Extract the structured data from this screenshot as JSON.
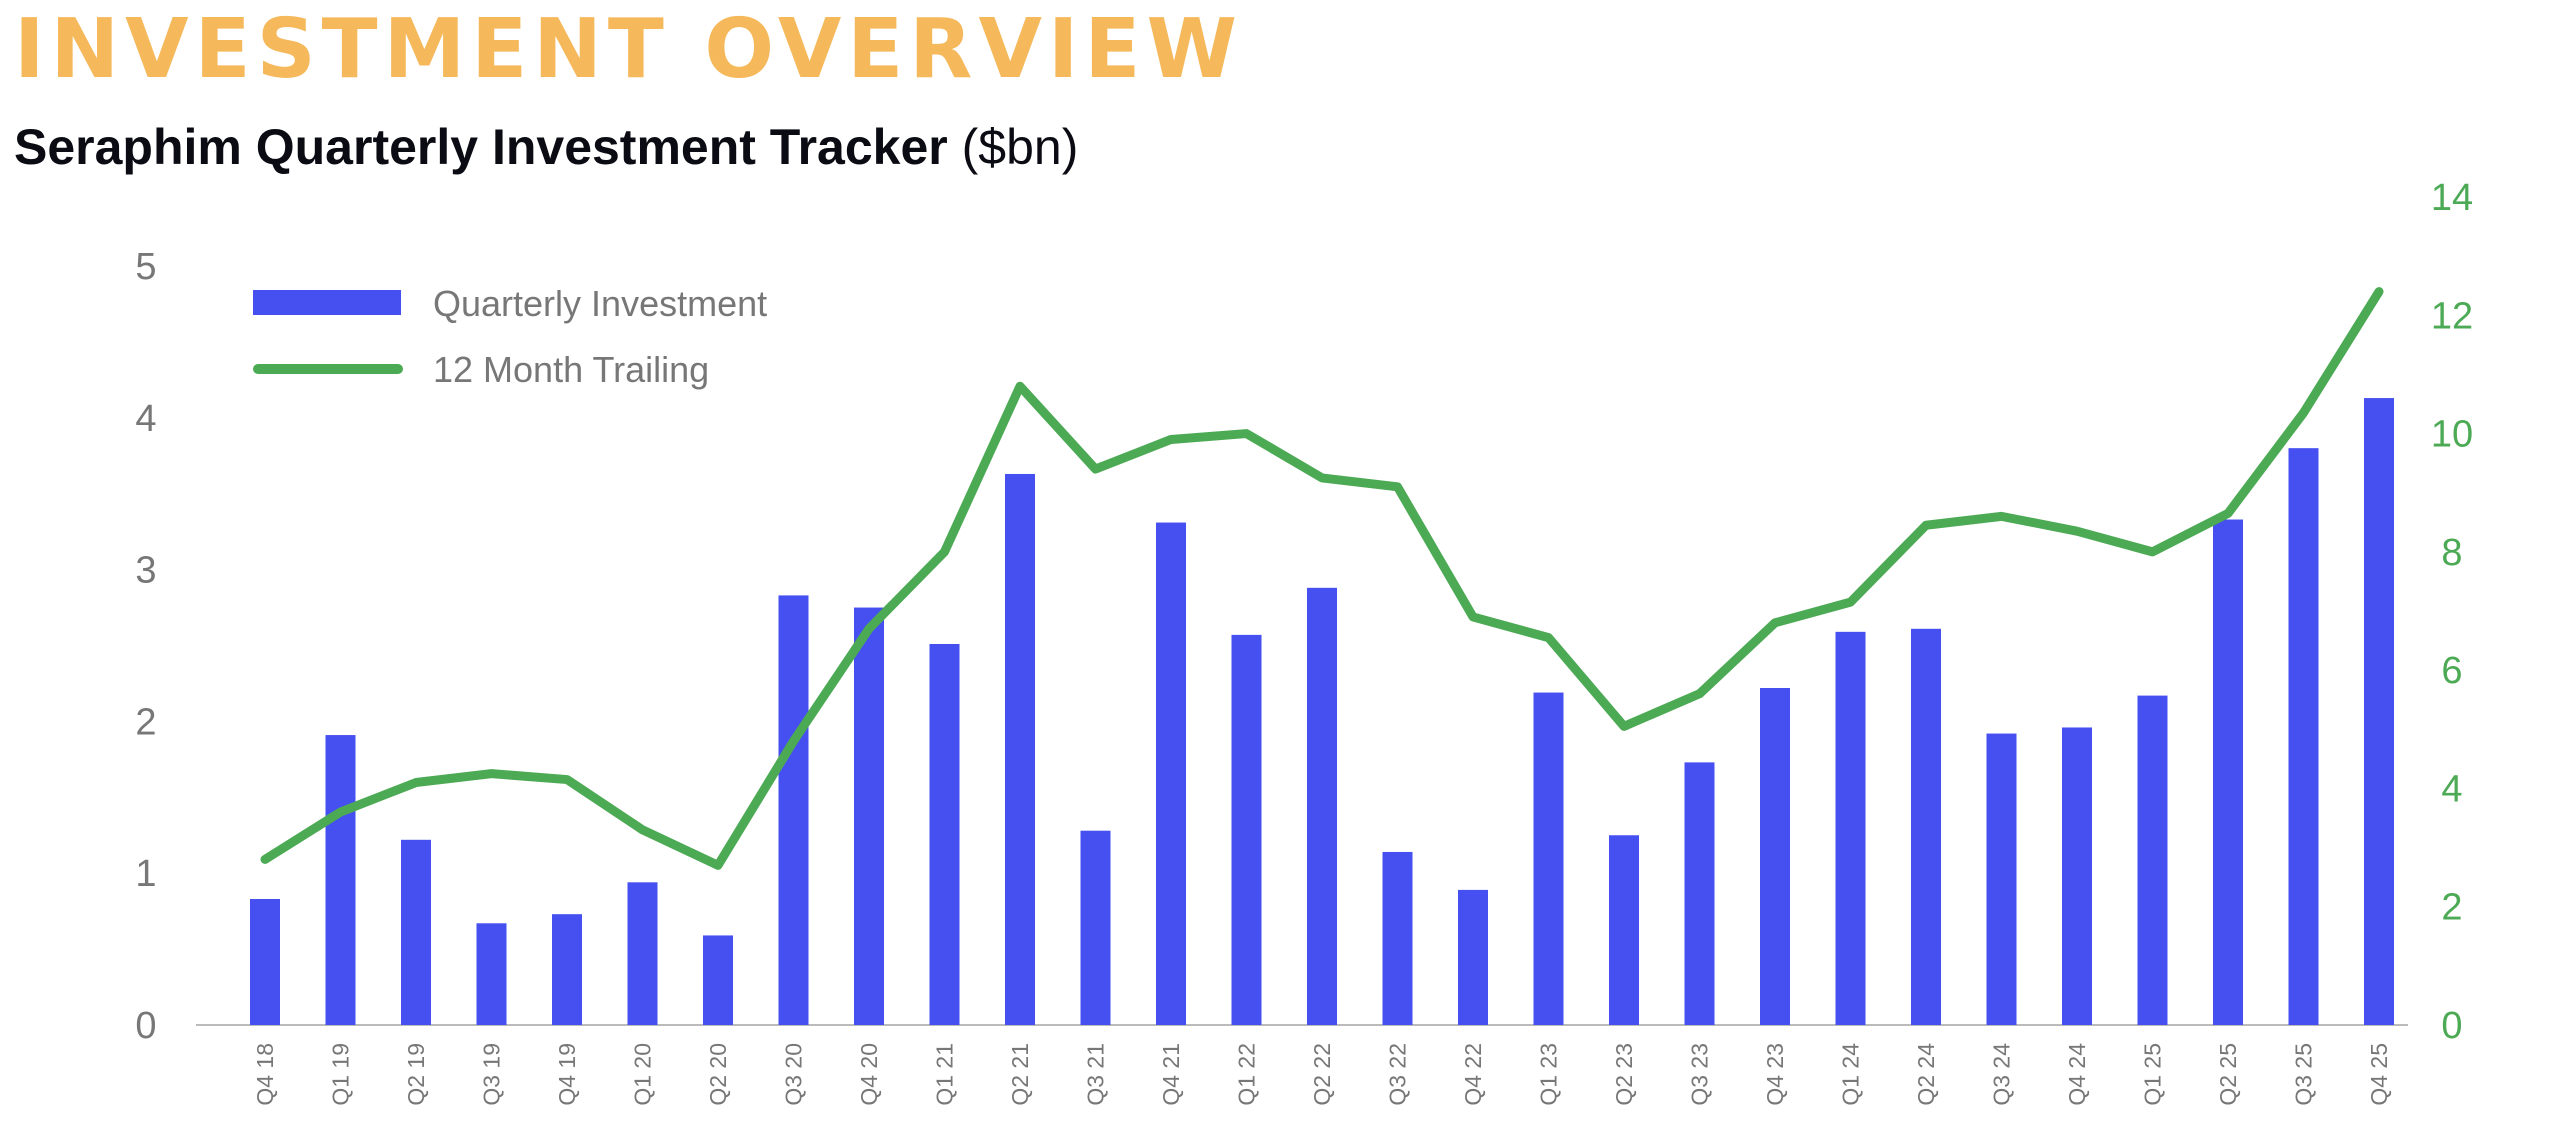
{
  "header": {
    "title": "INVESTMENT OVERVIEW",
    "subtitle_bold": "Seraphim Quarterly Investment Tracker",
    "subtitle_unit": "($bn)"
  },
  "chart_data": {
    "type": "bar+line",
    "categories": [
      "Q4 18",
      "Q1 19",
      "Q2 19",
      "Q3 19",
      "Q4 19",
      "Q1 20",
      "Q2 20",
      "Q3 20",
      "Q4 20",
      "Q1 21",
      "Q2 21",
      "Q3 21",
      "Q4 21",
      "Q1 22",
      "Q2 22",
      "Q3 22",
      "Q4 22",
      "Q1 23",
      "Q2 23",
      "Q3 23",
      "Q4 23",
      "Q1 24",
      "Q2 24",
      "Q3 24",
      "Q4 24",
      "Q1 25",
      "Q2 25",
      "Q3 25",
      "Q4 25"
    ],
    "series": [
      {
        "name": "Quarterly Investment",
        "type": "bar",
        "axis": "left",
        "color": "#4650f0",
        "values": [
          0.83,
          1.91,
          1.22,
          0.67,
          0.73,
          0.94,
          0.59,
          2.83,
          2.75,
          2.51,
          3.63,
          1.28,
          3.31,
          2.57,
          2.88,
          1.14,
          0.89,
          2.19,
          1.25,
          1.73,
          2.22,
          2.59,
          2.61,
          1.92,
          1.96,
          2.17,
          3.33,
          3.8,
          4.13
        ]
      },
      {
        "name": "12 Month Trailing",
        "type": "line",
        "axis": "right",
        "color": "#4caa55",
        "values": [
          2.8,
          3.6,
          4.1,
          4.25,
          4.15,
          3.3,
          2.7,
          4.8,
          6.7,
          8.0,
          10.8,
          9.4,
          9.9,
          10.0,
          9.25,
          9.1,
          6.9,
          6.55,
          5.05,
          5.6,
          6.8,
          7.15,
          8.45,
          8.6,
          8.35,
          8.0,
          8.65,
          10.35,
          12.4
        ]
      }
    ],
    "y_left": {
      "range": [
        0,
        5
      ],
      "ticks": [
        "0",
        "1",
        "2",
        "3",
        "4",
        "5"
      ]
    },
    "y_right": {
      "range": [
        0,
        14
      ],
      "ticks": [
        "0",
        "2",
        "4",
        "6",
        "8",
        "10",
        "12",
        "14"
      ]
    },
    "grid": false,
    "legend": "top-left"
  }
}
